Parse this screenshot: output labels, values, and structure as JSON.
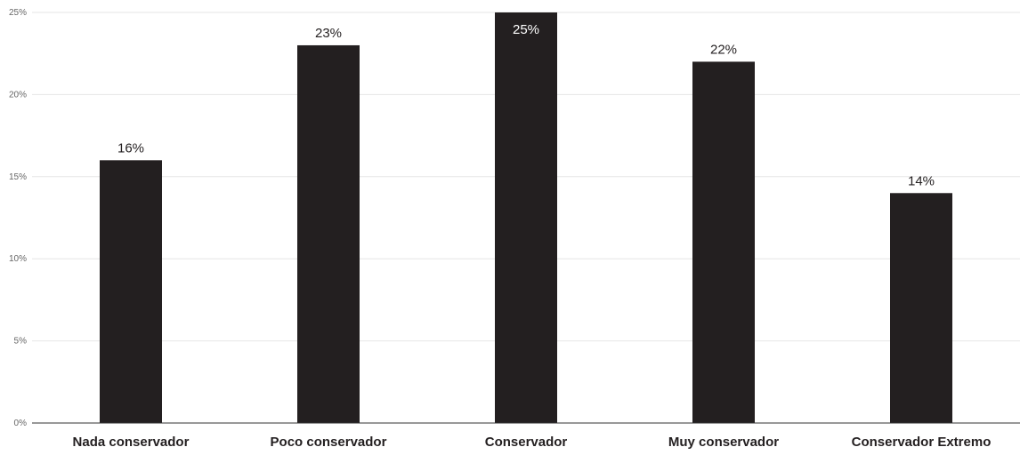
{
  "chart_data": {
    "type": "bar",
    "categories": [
      "Nada conservador",
      "Poco conservador",
      "Conservador",
      "Muy conservador",
      "Conservador Extremo"
    ],
    "values": [
      16,
      23,
      25,
      22,
      14
    ],
    "value_labels": [
      "16%",
      "23%",
      "25%",
      "22%",
      "14%"
    ],
    "ylim": [
      0,
      25
    ],
    "yticks": [
      0,
      5,
      10,
      15,
      20,
      25
    ],
    "ytick_labels": [
      "0%",
      "5%",
      "10%",
      "15%",
      "20%",
      "25%"
    ],
    "title": "",
    "xlabel": "",
    "ylabel": "",
    "grid": true,
    "legend": "none",
    "colors": {
      "bar": "#231f20",
      "grid": "#e6e6e6",
      "text": "#231f20",
      "tick_text": "#666666"
    }
  }
}
